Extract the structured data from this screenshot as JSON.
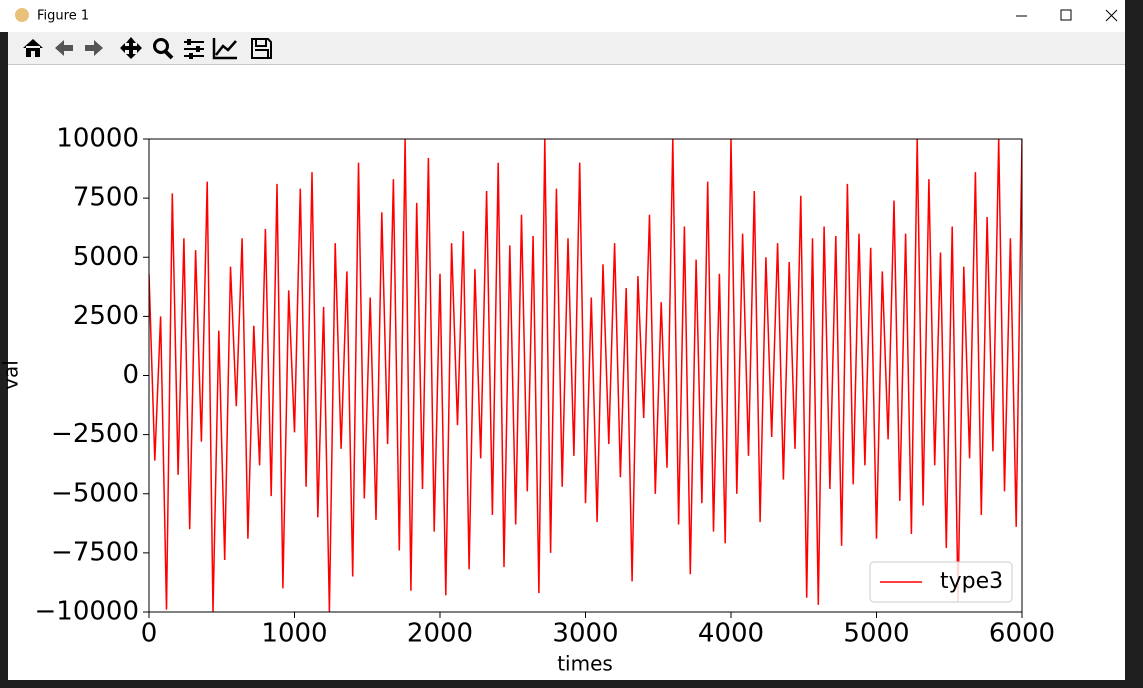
{
  "window": {
    "title": "Figure 1"
  },
  "chart_data": {
    "type": "line",
    "xlabel": "times",
    "ylabel": "val",
    "x": [
      0,
      40,
      80,
      120,
      160,
      200,
      240,
      280,
      320,
      360,
      400,
      440,
      480,
      520,
      560,
      600,
      640,
      680,
      720,
      760,
      800,
      840,
      880,
      920,
      960,
      1000,
      1040,
      1080,
      1120,
      1160,
      1200,
      1240,
      1280,
      1320,
      1360,
      1400,
      1440,
      1480,
      1520,
      1560,
      1600,
      1640,
      1680,
      1720,
      1760,
      1800,
      1840,
      1880,
      1920,
      1960,
      2000,
      2040,
      2080,
      2120,
      2160,
      2200,
      2240,
      2280,
      2320,
      2360,
      2400,
      2440,
      2480,
      2520,
      2560,
      2600,
      2640,
      2680,
      2720,
      2760,
      2800,
      2840,
      2880,
      2920,
      2960,
      3000,
      3040,
      3080,
      3120,
      3160,
      3200,
      3240,
      3280,
      3320,
      3360,
      3400,
      3440,
      3480,
      3520,
      3560,
      3600,
      3640,
      3680,
      3720,
      3760,
      3800,
      3840,
      3880,
      3920,
      3960,
      4000,
      4040,
      4080,
      4120,
      4160,
      4200,
      4240,
      4280,
      4320,
      4360,
      4400,
      4440,
      4480,
      4520,
      4560,
      4600,
      4640,
      4680,
      4720,
      4760,
      4800,
      4840,
      4880,
      4920,
      4960,
      5000,
      5040,
      5080,
      5120,
      5160,
      5200,
      5240,
      5280,
      5320,
      5360,
      5400,
      5440,
      5480,
      5520,
      5560,
      5600,
      5640,
      5680,
      5720,
      5760,
      5800,
      5840,
      5880,
      5920,
      5960,
      6000
    ],
    "series": [
      {
        "name": "type3",
        "color": "#ff0000",
        "values": [
          4300,
          -3600,
          2500,
          -9900,
          7700,
          -4200,
          5800,
          -6500,
          5300,
          -2800,
          8200,
          -10000,
          1900,
          -7800,
          4600,
          -1300,
          5800,
          -6900,
          2100,
          -3800,
          6200,
          -5100,
          8100,
          -9000,
          3600,
          -2400,
          7900,
          -4700,
          8600,
          -6000,
          2900,
          -10000,
          5600,
          -3100,
          4400,
          -8500,
          9000,
          -5200,
          3300,
          -6100,
          6900,
          -2900,
          8300,
          -7400,
          10000,
          -9100,
          7300,
          -4800,
          9200,
          -6600,
          4300,
          -9300,
          5600,
          -2100,
          6100,
          -8200,
          4500,
          -3500,
          7800,
          -5900,
          9000,
          -8100,
          5500,
          -6300,
          6800,
          -4900,
          5900,
          -9200,
          10000,
          -7500,
          7900,
          -4700,
          5800,
          -3400,
          9000,
          -5400,
          3300,
          -6200,
          4700,
          -2900,
          5600,
          -4300,
          3700,
          -8700,
          4200,
          -1800,
          6800,
          -5000,
          3100,
          -3900,
          10000,
          -6300,
          6300,
          -8400,
          4900,
          -5400,
          8200,
          -6600,
          4300,
          -7100,
          10000,
          -5000,
          6000,
          -3400,
          7800,
          -6200,
          5000,
          -2600,
          5600,
          -4400,
          4800,
          -3100,
          7600,
          -9400,
          5800,
          -9700,
          6300,
          -4800,
          5900,
          -7200,
          8100,
          -4600,
          6000,
          -3800,
          5400,
          -6900,
          4400,
          -2700,
          7400,
          -5300,
          6000,
          -6700,
          10000,
          -5500,
          8300,
          -3800,
          5200,
          -7300,
          6300,
          -9600,
          4600,
          -3500,
          8600,
          -5900,
          6700,
          -3200,
          10000,
          -4900,
          5800,
          -6400,
          10000
        ]
      }
    ],
    "xlim": [
      0,
      6000
    ],
    "xticks": [
      0,
      1000,
      2000,
      3000,
      4000,
      5000,
      6000
    ],
    "ylim": [
      -10000,
      10000
    ],
    "yticks": [
      {
        "value": -10000,
        "label": "−10000"
      },
      {
        "value": -7500,
        "label": "−7500"
      },
      {
        "value": -5000,
        "label": "−5000"
      },
      {
        "value": -2500,
        "label": "−2500"
      },
      0,
      2500,
      5000,
      7500,
      10000
    ],
    "legend": "lower right"
  }
}
